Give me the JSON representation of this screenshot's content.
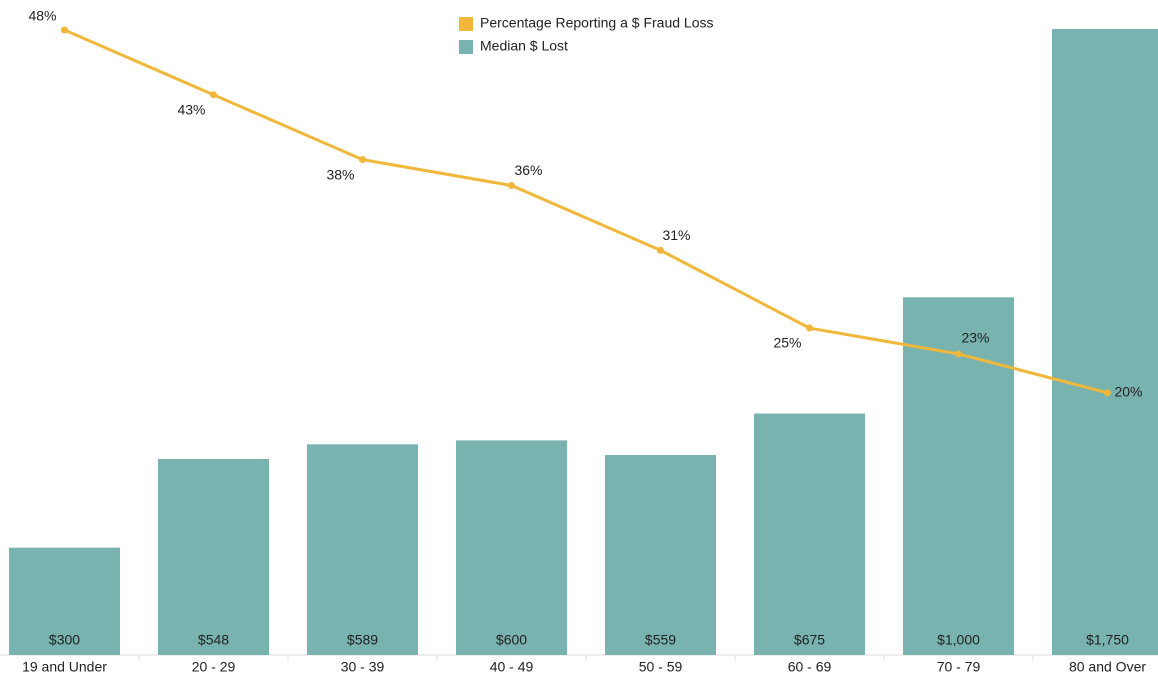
{
  "chart_data": {
    "type": "bar",
    "categories": [
      "19 and Under",
      "20 - 29",
      "30 - 39",
      "40 - 49",
      "50 - 59",
      "60 - 69",
      "70 - 79",
      "80 and Over"
    ],
    "series": [
      {
        "name": "Percentage Reporting a $ Fraud Loss",
        "type": "line",
        "axis": "y2",
        "color": "#f0b73a",
        "values": [
          48,
          43,
          38,
          36,
          31,
          25,
          23,
          20
        ],
        "value_labels": [
          "48%",
          "43%",
          "38%",
          "36%",
          "31%",
          "25%",
          "23%",
          "20%"
        ]
      },
      {
        "name": "Median $ Lost",
        "type": "bar",
        "color": "#78b3b0",
        "values": [
          300,
          548,
          589,
          600,
          559,
          675,
          1000,
          1750
        ],
        "value_labels": [
          "$300",
          "$548",
          "$589",
          "$600",
          "$559",
          "$675",
          "$1,000",
          "$1,750"
        ]
      }
    ]
  }
}
